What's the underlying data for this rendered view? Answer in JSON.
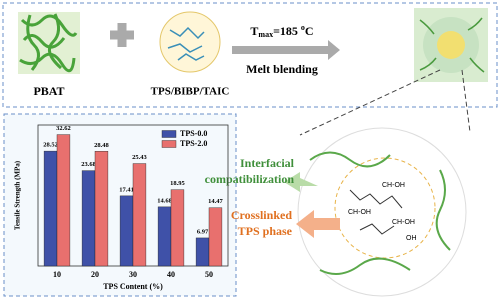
{
  "labels": {
    "pbat": "PBAT",
    "tps": "TPS/BIBP/TAIC",
    "condition": {
      "symbol": "T",
      "subscript": "max",
      "value": "=185 ",
      "degree": "o",
      "unit": "C"
    },
    "process": "Melt blending",
    "interfacial": [
      "Interfacial",
      "compatibilization"
    ],
    "crosslinked": [
      "Crosslinked",
      "TPS phase"
    ],
    "molecule": [
      "CH-OH",
      "CH-OH",
      "CH-OH",
      "OH"
    ]
  },
  "chart_data": {
    "type": "bar",
    "x_label": "TPS Content (%)",
    "y_label": "Tensile Strength (MPa)",
    "categories": [
      "10",
      "20",
      "30",
      "40",
      "50"
    ],
    "series": [
      {
        "name": "TPS-0.0",
        "color": "#3f51a8",
        "values": [
          28.52,
          23.68,
          17.41,
          14.68,
          6.97
        ]
      },
      {
        "name": "TPS-2.0",
        "color": "#e8706e",
        "values": [
          32.62,
          28.48,
          25.43,
          18.95,
          14.47
        ]
      }
    ],
    "ylim": [
      0,
      35
    ],
    "legend": "upper right"
  }
}
